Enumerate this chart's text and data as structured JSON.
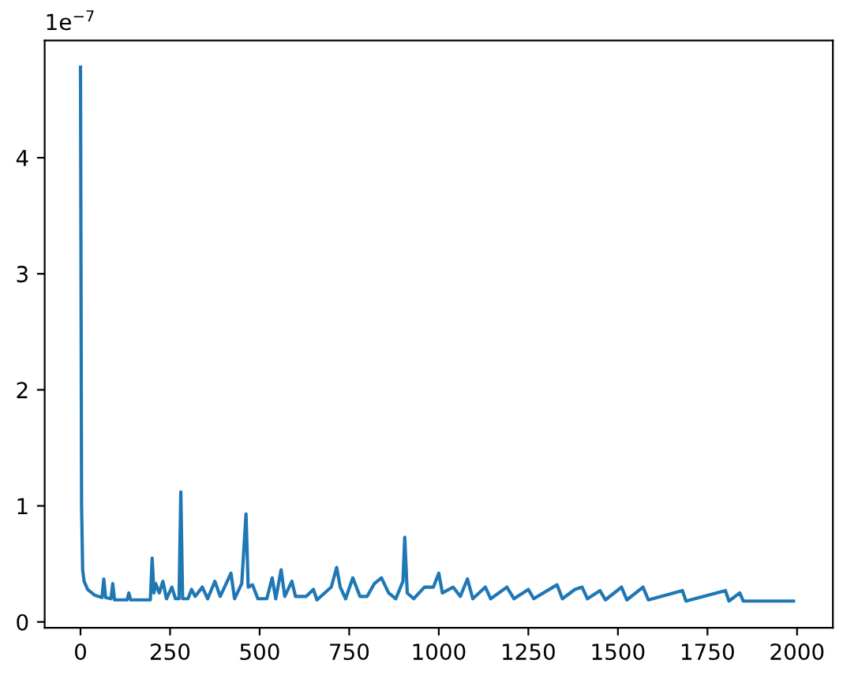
{
  "chart_data": {
    "type": "line",
    "x": [
      0,
      3,
      6,
      10,
      20,
      40,
      60,
      65,
      70,
      85,
      90,
      95,
      130,
      135,
      140,
      195,
      200,
      205,
      210,
      220,
      230,
      240,
      255,
      265,
      275,
      280,
      285,
      300,
      310,
      320,
      340,
      355,
      375,
      390,
      420,
      430,
      450,
      462,
      468,
      480,
      495,
      520,
      535,
      545,
      560,
      570,
      590,
      600,
      630,
      650,
      660,
      700,
      715,
      725,
      740,
      760,
      780,
      800,
      820,
      840,
      860,
      880,
      900,
      905,
      912,
      930,
      960,
      985,
      1000,
      1010,
      1040,
      1060,
      1080,
      1095,
      1130,
      1145,
      1190,
      1210,
      1250,
      1265,
      1330,
      1345,
      1380,
      1400,
      1415,
      1450,
      1465,
      1510,
      1525,
      1570,
      1585,
      1680,
      1690,
      1800,
      1810,
      1840,
      1850,
      1990
    ],
    "series": [
      {
        "color": "#1f77b4",
        "values": [
          4.78,
          1.0,
          0.45,
          0.35,
          0.28,
          0.23,
          0.21,
          0.37,
          0.21,
          0.2,
          0.33,
          0.19,
          0.19,
          0.25,
          0.19,
          0.19,
          0.55,
          0.25,
          0.33,
          0.25,
          0.35,
          0.2,
          0.3,
          0.2,
          0.2,
          1.12,
          0.2,
          0.2,
          0.28,
          0.22,
          0.3,
          0.2,
          0.35,
          0.22,
          0.42,
          0.2,
          0.33,
          0.93,
          0.3,
          0.32,
          0.2,
          0.2,
          0.38,
          0.2,
          0.45,
          0.22,
          0.35,
          0.22,
          0.22,
          0.28,
          0.19,
          0.3,
          0.47,
          0.3,
          0.2,
          0.38,
          0.22,
          0.22,
          0.33,
          0.38,
          0.25,
          0.2,
          0.35,
          0.73,
          0.25,
          0.2,
          0.3,
          0.3,
          0.42,
          0.25,
          0.3,
          0.22,
          0.37,
          0.2,
          0.3,
          0.2,
          0.3,
          0.2,
          0.28,
          0.2,
          0.32,
          0.2,
          0.28,
          0.3,
          0.2,
          0.27,
          0.19,
          0.3,
          0.19,
          0.3,
          0.19,
          0.27,
          0.18,
          0.27,
          0.18,
          0.25,
          0.18,
          0.18
        ]
      }
    ],
    "xlim": [
      -100,
      2100
    ],
    "xticks": [
      0,
      250,
      500,
      750,
      1000,
      1250,
      1500,
      1750,
      2000
    ],
    "ylim": [
      -0.05,
      5.01
    ],
    "yticks": [
      0,
      1,
      2,
      3,
      4
    ],
    "annotations": [
      "1e$^{−7}$"
    ],
    "grid": false,
    "legend": false,
    "line_style": "solid",
    "marker": "none"
  }
}
